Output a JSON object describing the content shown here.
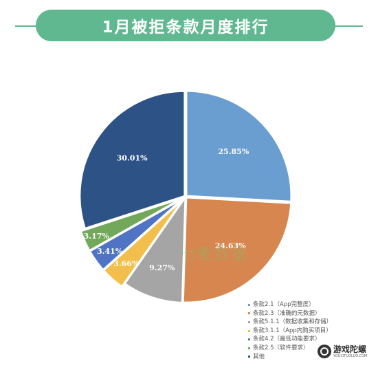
{
  "title": "1月被拒条款月度排行",
  "watermark": "七麦数据",
  "chart_data": {
    "type": "pie",
    "slices": [
      {
        "label": "条款2.1（App完整度）",
        "value": 25.85,
        "display": "25.85%",
        "color": "#6a9ed0"
      },
      {
        "label": "条款2.3（准确的元数据）",
        "value": 24.63,
        "display": "24.63%",
        "color": "#d6864e"
      },
      {
        "label": "条款5.1.1（数据收集和存储）",
        "value": 9.27,
        "display": "9.27%",
        "color": "#a5a5a5"
      },
      {
        "label": "条款3.1.1（App内购买项目）",
        "value": 3.66,
        "display": "3.66%",
        "color": "#f2bf4c"
      },
      {
        "label": "条款4.2（最低功能要求）",
        "value": 3.41,
        "display": "3.41%",
        "color": "#4f74c3"
      },
      {
        "label": "条款2.5（软件要求）",
        "value": 3.17,
        "display": "3.17%",
        "color": "#72a85a"
      },
      {
        "label": "其他",
        "value": 30.01,
        "display": "30.01%",
        "color": "#2d5286"
      }
    ]
  },
  "brand": {
    "name": "游戏陀螺",
    "url": "YOUXITUOLUO.COM"
  }
}
